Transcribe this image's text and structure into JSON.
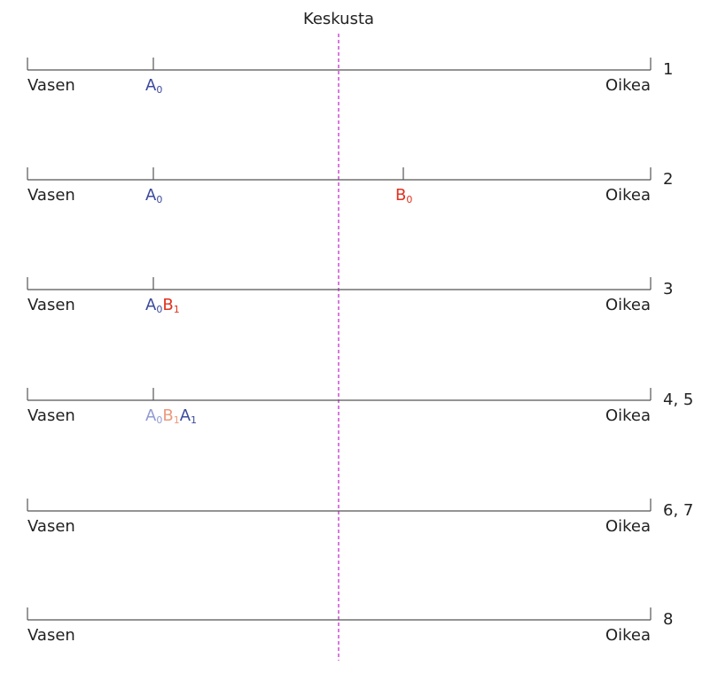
{
  "center_label": "Keskusta",
  "rows": [
    {
      "step": "1",
      "left": "Vasen",
      "right": "Oikea",
      "markers": [
        {
          "labels": [
            {
              "letter": "A",
              "sub": "0",
              "color": "#3b4a9c"
            }
          ]
        }
      ]
    },
    {
      "step": "2",
      "left": "Vasen",
      "right": "Oikea",
      "markers": [
        {
          "labels": [
            {
              "letter": "A",
              "sub": "0",
              "color": "#3b4a9c"
            }
          ]
        },
        {
          "labels": [
            {
              "letter": "B",
              "sub": "0",
              "color": "#e0301e"
            }
          ]
        }
      ]
    },
    {
      "step": "3",
      "left": "Vasen",
      "right": "Oikea",
      "markers": [
        {
          "labels": [
            {
              "letter": "A",
              "sub": "0",
              "color": "#3b4a9c"
            },
            {
              "letter": "B",
              "sub": "1",
              "color": "#e0301e"
            }
          ]
        }
      ]
    },
    {
      "step": "4, 5",
      "left": "Vasen",
      "right": "Oikea",
      "markers": [
        {
          "labels": [
            {
              "letter": "A",
              "sub": "0",
              "color": "#909bd2"
            },
            {
              "letter": "B",
              "sub": "1",
              "color": "#eb9a7c"
            },
            {
              "letter": "A",
              "sub": "1",
              "color": "#3b4a9c"
            }
          ]
        }
      ]
    },
    {
      "step": "6, 7",
      "left": "Vasen",
      "right": "Oikea",
      "markers": []
    },
    {
      "step": "8",
      "left": "Vasen",
      "right": "Oikea",
      "markers": []
    }
  ]
}
